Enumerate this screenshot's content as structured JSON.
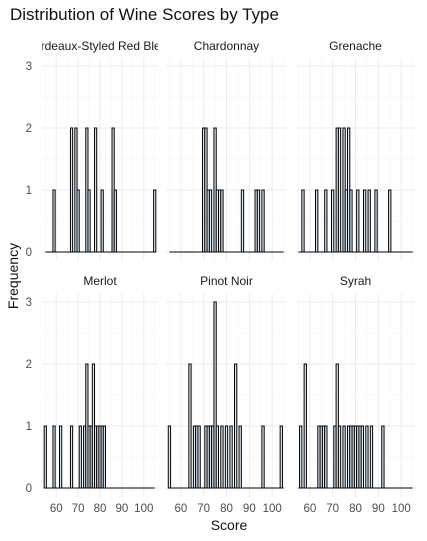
{
  "chart_data": {
    "type": "bar",
    "title": "Distribution of Wine Scores by Type",
    "xlabel": "Score",
    "ylabel": "Frequency",
    "x_ticks": [
      60,
      70,
      80,
      90,
      100
    ],
    "y_ticks": [
      0,
      1,
      2,
      3
    ],
    "xlim": [
      53.5,
      106.5
    ],
    "ylim": [
      0,
      3.2
    ],
    "bar_width": 1,
    "grid": true,
    "facets": [
      {
        "label": "Bordeaux-Styled Red Blend",
        "bars": [
          {
            "x": 59,
            "y": 1
          },
          {
            "x": 67,
            "y": 2
          },
          {
            "x": 69,
            "y": 2
          },
          {
            "x": 70,
            "y": 1
          },
          {
            "x": 74,
            "y": 2
          },
          {
            "x": 75,
            "y": 1
          },
          {
            "x": 78,
            "y": 2
          },
          {
            "x": 81,
            "y": 1
          },
          {
            "x": 86,
            "y": 2
          },
          {
            "x": 87,
            "y": 1
          },
          {
            "x": 105,
            "y": 1
          }
        ]
      },
      {
        "label": "Chardonnay",
        "bars": [
          {
            "x": 70,
            "y": 2
          },
          {
            "x": 71,
            "y": 2
          },
          {
            "x": 72,
            "y": 1
          },
          {
            "x": 73,
            "y": 1
          },
          {
            "x": 75,
            "y": 2
          },
          {
            "x": 76,
            "y": 1
          },
          {
            "x": 77,
            "y": 1
          },
          {
            "x": 78,
            "y": 1
          },
          {
            "x": 87,
            "y": 1
          },
          {
            "x": 93,
            "y": 1
          },
          {
            "x": 94,
            "y": 1
          },
          {
            "x": 96,
            "y": 1
          }
        ]
      },
      {
        "label": "Grenache",
        "bars": [
          {
            "x": 57,
            "y": 1
          },
          {
            "x": 63,
            "y": 1
          },
          {
            "x": 67,
            "y": 1
          },
          {
            "x": 70,
            "y": 1
          },
          {
            "x": 72,
            "y": 2
          },
          {
            "x": 73,
            "y": 2
          },
          {
            "x": 75,
            "y": 2
          },
          {
            "x": 76,
            "y": 1
          },
          {
            "x": 77,
            "y": 2
          },
          {
            "x": 78,
            "y": 1
          },
          {
            "x": 81,
            "y": 1
          },
          {
            "x": 84,
            "y": 1
          },
          {
            "x": 86,
            "y": 1
          },
          {
            "x": 89,
            "y": 1
          },
          {
            "x": 95,
            "y": 1
          }
        ]
      },
      {
        "label": "Merlot",
        "bars": [
          {
            "x": 55,
            "y": 1
          },
          {
            "x": 59,
            "y": 1
          },
          {
            "x": 62,
            "y": 1
          },
          {
            "x": 67,
            "y": 1
          },
          {
            "x": 71,
            "y": 1
          },
          {
            "x": 73,
            "y": 1
          },
          {
            "x": 74,
            "y": 2
          },
          {
            "x": 75,
            "y": 1
          },
          {
            "x": 76,
            "y": 1
          },
          {
            "x": 77,
            "y": 2
          },
          {
            "x": 78,
            "y": 1
          },
          {
            "x": 79,
            "y": 1
          },
          {
            "x": 80,
            "y": 1
          },
          {
            "x": 81,
            "y": 1
          },
          {
            "x": 82,
            "y": 1
          }
        ]
      },
      {
        "label": "Pinot Noir",
        "bars": [
          {
            "x": 55,
            "y": 1
          },
          {
            "x": 64,
            "y": 2
          },
          {
            "x": 66,
            "y": 1
          },
          {
            "x": 67,
            "y": 1
          },
          {
            "x": 68,
            "y": 1
          },
          {
            "x": 71,
            "y": 1
          },
          {
            "x": 72,
            "y": 1
          },
          {
            "x": 73,
            "y": 1
          },
          {
            "x": 74,
            "y": 1
          },
          {
            "x": 75,
            "y": 3
          },
          {
            "x": 76,
            "y": 1
          },
          {
            "x": 78,
            "y": 1
          },
          {
            "x": 80,
            "y": 1
          },
          {
            "x": 82,
            "y": 1
          },
          {
            "x": 84,
            "y": 2
          },
          {
            "x": 86,
            "y": 1
          },
          {
            "x": 96,
            "y": 1
          },
          {
            "x": 104,
            "y": 1
          }
        ]
      },
      {
        "label": "Syrah",
        "bars": [
          {
            "x": 56,
            "y": 1
          },
          {
            "x": 58,
            "y": 2
          },
          {
            "x": 64,
            "y": 1
          },
          {
            "x": 65,
            "y": 1
          },
          {
            "x": 66,
            "y": 1
          },
          {
            "x": 67,
            "y": 1
          },
          {
            "x": 71,
            "y": 1
          },
          {
            "x": 72,
            "y": 2
          },
          {
            "x": 73,
            "y": 1
          },
          {
            "x": 75,
            "y": 1
          },
          {
            "x": 77,
            "y": 1
          },
          {
            "x": 78,
            "y": 1
          },
          {
            "x": 79,
            "y": 1
          },
          {
            "x": 80,
            "y": 1
          },
          {
            "x": 81,
            "y": 1
          },
          {
            "x": 82,
            "y": 1
          },
          {
            "x": 83,
            "y": 1
          },
          {
            "x": 85,
            "y": 1
          },
          {
            "x": 87,
            "y": 1
          },
          {
            "x": 92,
            "y": 1
          }
        ]
      }
    ]
  },
  "colors": {
    "bar_fill": "#ddeaf7",
    "bar_stroke": "#000000",
    "grid_major": "#ebebeb",
    "grid_minor": "#f5f5f5",
    "baseline": "#000000"
  }
}
